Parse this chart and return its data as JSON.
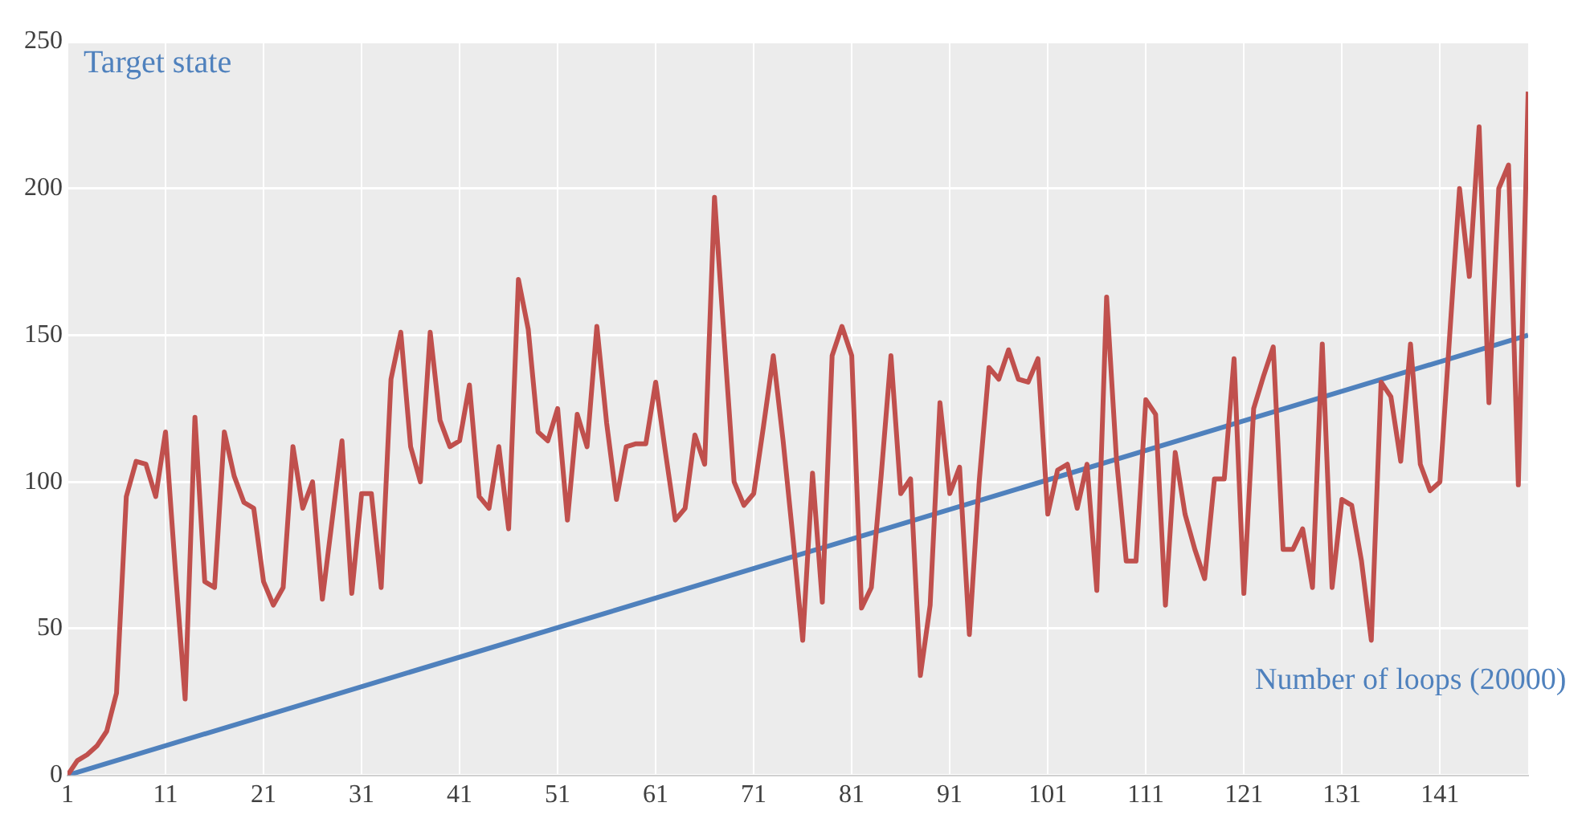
{
  "chart_data": {
    "type": "line",
    "x": [
      1,
      2,
      3,
      4,
      5,
      6,
      7,
      8,
      9,
      10,
      11,
      12,
      13,
      14,
      15,
      16,
      17,
      18,
      19,
      20,
      21,
      22,
      23,
      24,
      25,
      26,
      27,
      28,
      29,
      30,
      31,
      32,
      33,
      34,
      35,
      36,
      37,
      38,
      39,
      40,
      41,
      42,
      43,
      44,
      45,
      46,
      47,
      48,
      49,
      50,
      51,
      52,
      53,
      54,
      55,
      56,
      57,
      58,
      59,
      60,
      61,
      62,
      63,
      64,
      65,
      66,
      67,
      68,
      69,
      70,
      71,
      72,
      73,
      74,
      75,
      76,
      77,
      78,
      79,
      80,
      81,
      82,
      83,
      84,
      85,
      86,
      87,
      88,
      89,
      90,
      91,
      92,
      93,
      94,
      95,
      96,
      97,
      98,
      99,
      100,
      101,
      102,
      103,
      104,
      105,
      106,
      107,
      108,
      109,
      110,
      111,
      112,
      113,
      114,
      115,
      116,
      117,
      118,
      119,
      120,
      121,
      122,
      123,
      124,
      125,
      126,
      127,
      128,
      129,
      130,
      131,
      132,
      133,
      134,
      135,
      136,
      137,
      138,
      139,
      140,
      141,
      142,
      143,
      144,
      145,
      146,
      147,
      148,
      149,
      150
    ],
    "series": [
      {
        "color": "#c0504d",
        "values": [
          0,
          5,
          7,
          10,
          15,
          28,
          95,
          107,
          106,
          95,
          117,
          70,
          26,
          122,
          66,
          64,
          117,
          102,
          93,
          91,
          66,
          58,
          64,
          112,
          91,
          100,
          60,
          87,
          114,
          62,
          96,
          96,
          64,
          135,
          151,
          112,
          100,
          151,
          121,
          112,
          114,
          133,
          95,
          91,
          112,
          84,
          169,
          152,
          117,
          114,
          125,
          87,
          123,
          112,
          153,
          120,
          94,
          112,
          113,
          113,
          134,
          110,
          87,
          91,
          116,
          106,
          197,
          148,
          100,
          92,
          96,
          119,
          143,
          114,
          81,
          46,
          103,
          59,
          143,
          153,
          143,
          57,
          64,
          102,
          143,
          96,
          101,
          34,
          58,
          127,
          96,
          105,
          48,
          100,
          139,
          135,
          145,
          135,
          134,
          142,
          89,
          104,
          106,
          91,
          106,
          63,
          163,
          108,
          73,
          73,
          128,
          123,
          58,
          110,
          89,
          77,
          67,
          101,
          101,
          142,
          62,
          125,
          136,
          146,
          77,
          77,
          84,
          64,
          147,
          64,
          94,
          92,
          73,
          46,
          134,
          129,
          107,
          147,
          106,
          97,
          100,
          150,
          200,
          170,
          221,
          127,
          200,
          208,
          99,
          233
        ]
      },
      {
        "color": "#4f81bd",
        "x": [
          1,
          150
        ],
        "values": [
          0,
          150
        ]
      }
    ],
    "xlim": [
      1,
      150
    ],
    "xticks": [
      1,
      11,
      21,
      31,
      41,
      51,
      61,
      71,
      81,
      91,
      101,
      111,
      121,
      131,
      141
    ],
    "ylim": [
      0,
      250
    ],
    "yticks": [
      0,
      50,
      100,
      150,
      200,
      250
    ],
    "grid": true,
    "marker": "none",
    "line_style": "solid",
    "annotations": [
      "Target state",
      "Number of loops (20000)"
    ]
  }
}
